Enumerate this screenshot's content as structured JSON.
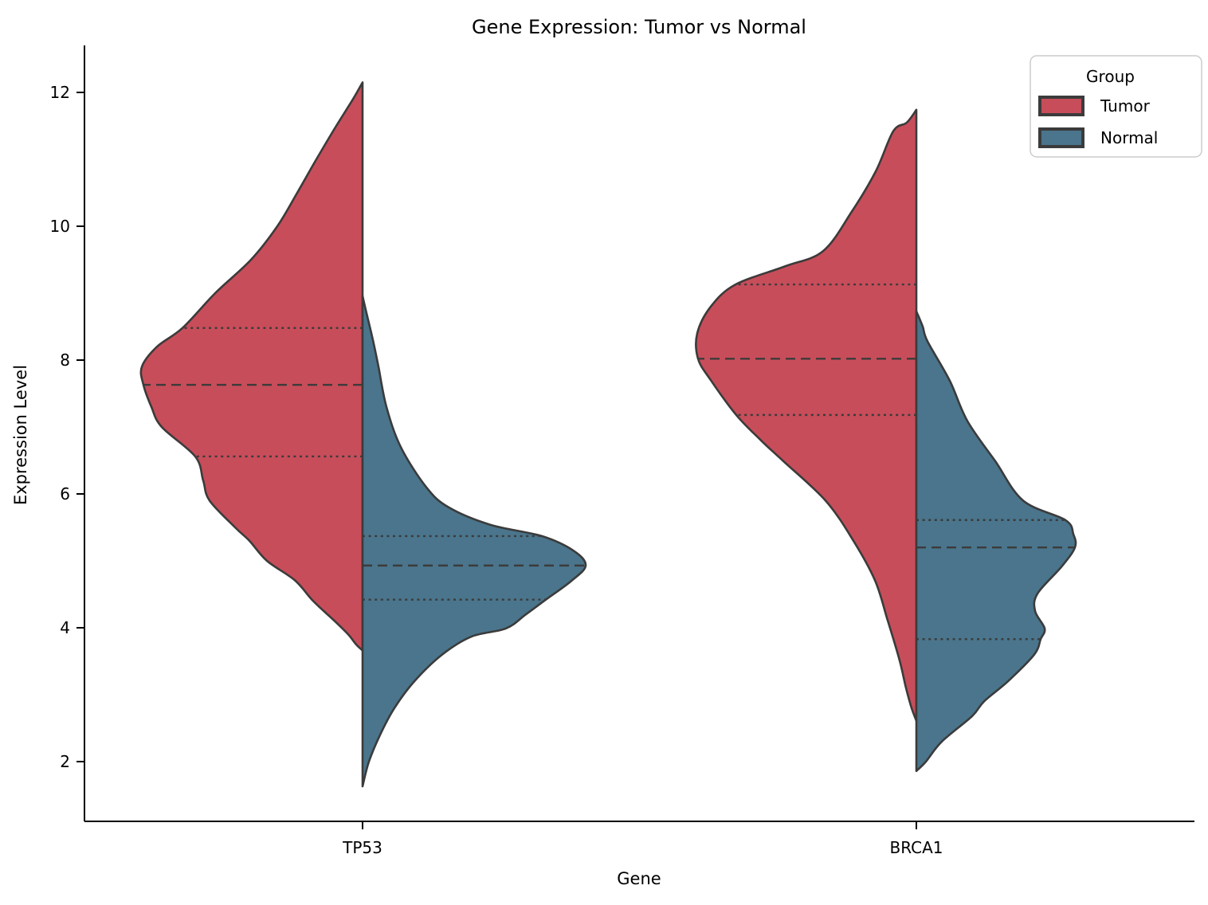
{
  "chart_data": {
    "type": "violin",
    "title": "Gene Expression: Tumor vs Normal",
    "xlabel": "Gene",
    "ylabel": "Expression Level",
    "categories": [
      "TP53",
      "BRCA1"
    ],
    "yticks": [
      2,
      4,
      6,
      8,
      10,
      12
    ],
    "ylim": [
      1.1,
      12.7
    ],
    "grid": false,
    "legend": {
      "title": "Group",
      "position": "upper right",
      "items": [
        {
          "label": "Tumor",
          "color": "#C84D5A"
        },
        {
          "label": "Normal",
          "color": "#4A758C"
        }
      ]
    },
    "colors": {
      "tumor": "#C84D5A",
      "normal": "#4A758C",
      "edge": "#3B3B3B",
      "axis": "#000000"
    },
    "inner_style": "quartiles",
    "violins": [
      {
        "gene": "TP53",
        "group": "Tumor",
        "side": "left",
        "min": 3.66,
        "q1": 6.56,
        "median": 7.63,
        "q3": 8.48,
        "max": 12.15,
        "profile": [
          [
            12.15,
            0
          ],
          [
            11.9,
            12
          ],
          [
            11.5,
            33
          ],
          [
            11.0,
            58
          ],
          [
            10.5,
            82
          ],
          [
            10.0,
            107
          ],
          [
            9.5,
            140
          ],
          [
            9.0,
            185
          ],
          [
            8.48,
            226
          ],
          [
            8.2,
            258
          ],
          [
            7.9,
            277
          ],
          [
            7.63,
            275
          ],
          [
            7.3,
            265
          ],
          [
            7.0,
            252
          ],
          [
            6.56,
            210
          ],
          [
            6.2,
            200
          ],
          [
            5.9,
            192
          ],
          [
            5.5,
            160
          ],
          [
            5.3,
            142
          ],
          [
            5.0,
            120
          ],
          [
            4.71,
            85
          ],
          [
            4.4,
            62
          ],
          [
            4.1,
            35
          ],
          [
            3.9,
            18
          ],
          [
            3.75,
            8
          ],
          [
            3.66,
            0
          ]
        ]
      },
      {
        "gene": "TP53",
        "group": "Normal",
        "side": "right",
        "min": 1.63,
        "q1": 4.42,
        "median": 4.93,
        "q3": 5.37,
        "max": 8.96,
        "profile": [
          [
            8.96,
            0
          ],
          [
            8.7,
            5
          ],
          [
            8.3,
            13
          ],
          [
            7.9,
            20
          ],
          [
            7.3,
            30
          ],
          [
            6.7,
            48
          ],
          [
            6.1,
            80
          ],
          [
            5.8,
            108
          ],
          [
            5.54,
            160
          ],
          [
            5.37,
            225
          ],
          [
            5.15,
            265
          ],
          [
            4.93,
            280
          ],
          [
            4.7,
            262
          ],
          [
            4.42,
            230
          ],
          [
            4.2,
            205
          ],
          [
            3.99,
            180
          ],
          [
            3.87,
            137
          ],
          [
            3.6,
            100
          ],
          [
            3.2,
            65
          ],
          [
            2.8,
            40
          ],
          [
            2.4,
            22
          ],
          [
            2.0,
            8
          ],
          [
            1.63,
            0
          ]
        ]
      },
      {
        "gene": "BRCA1",
        "group": "Tumor",
        "side": "left",
        "min": 2.61,
        "q1": 7.18,
        "median": 8.02,
        "q3": 9.13,
        "max": 11.74,
        "profile": [
          [
            11.74,
            0
          ],
          [
            11.55,
            12
          ],
          [
            11.42,
            29
          ],
          [
            10.82,
            51
          ],
          [
            10.22,
            81
          ],
          [
            9.63,
            117
          ],
          [
            9.4,
            165
          ],
          [
            9.13,
            227
          ],
          [
            8.8,
            258
          ],
          [
            8.4,
            275
          ],
          [
            8.02,
            274
          ],
          [
            7.7,
            258
          ],
          [
            7.18,
            226
          ],
          [
            6.8,
            195
          ],
          [
            6.49,
            167
          ],
          [
            5.9,
            114
          ],
          [
            5.3,
            79
          ],
          [
            4.71,
            52
          ],
          [
            4.11,
            36
          ],
          [
            3.51,
            21
          ],
          [
            3.1,
            13
          ],
          [
            2.8,
            6
          ],
          [
            2.61,
            0
          ]
        ]
      },
      {
        "gene": "BRCA1",
        "group": "Normal",
        "side": "right",
        "min": 1.86,
        "q1": 3.83,
        "median": 5.2,
        "q3": 5.61,
        "max": 8.73,
        "profile": [
          [
            8.73,
            0
          ],
          [
            8.5,
            8
          ],
          [
            8.28,
            14
          ],
          [
            7.69,
            42
          ],
          [
            7.09,
            64
          ],
          [
            6.49,
            99
          ],
          [
            5.9,
            134
          ],
          [
            5.61,
            187
          ],
          [
            5.4,
            197
          ],
          [
            5.2,
            199
          ],
          [
            4.91,
            182
          ],
          [
            4.51,
            152
          ],
          [
            4.25,
            149
          ],
          [
            3.99,
            161
          ],
          [
            3.83,
            156
          ],
          [
            3.6,
            148
          ],
          [
            3.2,
            115
          ],
          [
            2.9,
            85
          ],
          [
            2.68,
            70
          ],
          [
            2.3,
            32
          ],
          [
            2.0,
            12
          ],
          [
            1.86,
            0
          ]
        ]
      }
    ]
  }
}
